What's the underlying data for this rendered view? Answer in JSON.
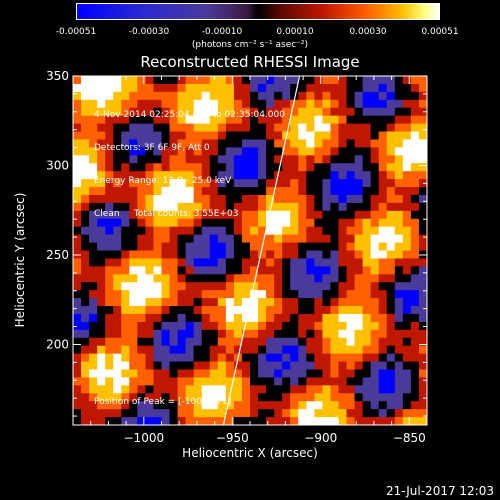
{
  "colorbar": {
    "ticks": [
      "-0.00051",
      "-0.00030",
      "-0.00010",
      "0.00010",
      "0.00030",
      "0.00051"
    ],
    "unit_label": "(photons cm⁻² s⁻¹ asec⁻²)"
  },
  "chart_data": {
    "type": "heatmap",
    "title": "Reconstructed RHESSI Image",
    "xlabel": "Heliocentric X (arcsec)",
    "ylabel": "Heliocentric Y (arcsec)",
    "xlim": [
      -1040,
      -840
    ],
    "ylim": [
      155,
      350
    ],
    "x_ticks": [
      -1000,
      -950,
      -900,
      -850
    ],
    "x_tick_labels": [
      "−1000",
      "−950",
      "−900",
      "−850"
    ],
    "y_ticks": [
      200,
      250,
      300,
      350
    ],
    "y_tick_labels": [
      "200",
      "250",
      "300",
      "350"
    ],
    "limb_line": {
      "x": [
        -955,
        -912
      ],
      "y": [
        155,
        350
      ]
    },
    "peak": {
      "x": -1001,
      "y": 271
    },
    "colormap": [
      "#0000ff",
      "#4b3a9a",
      "#000000",
      "#c01800",
      "#ff6000",
      "#ffc000",
      "#ffffff"
    ]
  },
  "info_lines": [
    "4-Nov-2014 02:25:04.000 to 02:35:04.000",
    "Detectors: 3F 6F 9F, Att 0",
    "Energy Range: 12.0 - 25.0 keV",
    "Clean     Total counts: 3.55E+03"
  ],
  "peak_label": "Position of Peak = [-1001,271]",
  "footer": "21-Jul-2017 12:03"
}
